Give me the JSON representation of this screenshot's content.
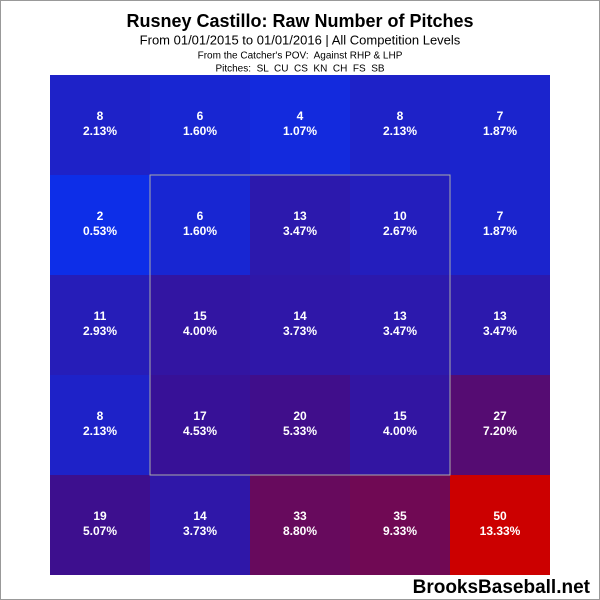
{
  "chart_data": {
    "type": "heatmap",
    "title": "Rusney Castillo: Raw Number of Pitches",
    "subtitle": "From 01/01/2015 to 01/01/2016 | All Competition Levels",
    "pov": "From the Catcher's POV:  Against RHP & LHP",
    "pitches": "Pitches:  SL  CU  CS  KN  CH  FS  SB",
    "watermark": "BrooksBaseball.net",
    "values": [
      [
        8,
        6,
        4,
        8,
        7
      ],
      [
        2,
        6,
        13,
        10,
        7
      ],
      [
        11,
        15,
        14,
        13,
        13
      ],
      [
        8,
        17,
        20,
        15,
        27
      ],
      [
        19,
        14,
        33,
        35,
        50
      ]
    ],
    "percents": [
      [
        2.13,
        1.6,
        1.07,
        2.13,
        1.87
      ],
      [
        0.53,
        1.6,
        3.47,
        2.67,
        1.87
      ],
      [
        2.93,
        4.0,
        3.73,
        3.47,
        3.47
      ],
      [
        2.13,
        4.53,
        5.33,
        4.0,
        7.2
      ],
      [
        5.07,
        3.73,
        8.8,
        9.33,
        13.33
      ]
    ],
    "percent_labels": [
      [
        "2.13%",
        "1.60%",
        "1.07%",
        "2.13%",
        "1.87%"
      ],
      [
        "0.53%",
        "1.60%",
        "3.47%",
        "2.67%",
        "1.87%"
      ],
      [
        "2.93%",
        "4.00%",
        "3.73%",
        "3.47%",
        "3.47%"
      ],
      [
        "2.13%",
        "4.53%",
        "5.33%",
        "4.00%",
        "7.20%"
      ],
      [
        "5.07%",
        "3.73%",
        "8.80%",
        "9.33%",
        "13.33%"
      ]
    ],
    "colorscale": [
      "#0d2ee8",
      "#3a0f92",
      "#6a0a5a",
      "#cc0000"
    ]
  }
}
